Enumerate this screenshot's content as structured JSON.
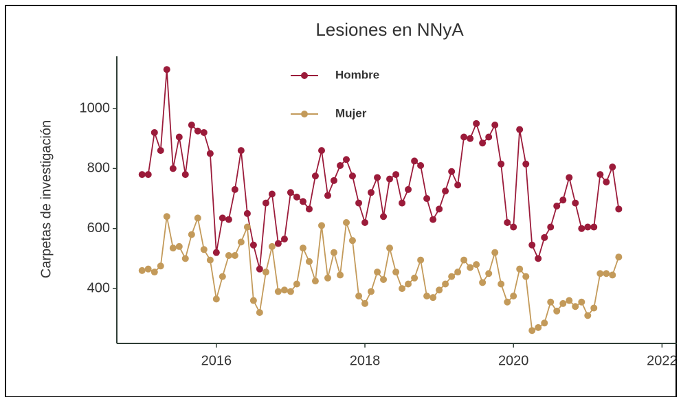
{
  "chart_data": {
    "type": "line",
    "title": "Lesiones en NNyA",
    "ylabel": "Carpetas de investigación",
    "x": [
      2015,
      2015.083,
      2015.167,
      2015.25,
      2015.333,
      2015.417,
      2015.5,
      2015.583,
      2015.667,
      2015.75,
      2015.833,
      2015.917,
      2016,
      2016.083,
      2016.167,
      2016.25,
      2016.333,
      2016.417,
      2016.5,
      2016.583,
      2016.667,
      2016.75,
      2016.833,
      2016.917,
      2017,
      2017.083,
      2017.167,
      2017.25,
      2017.333,
      2017.417,
      2017.5,
      2017.583,
      2017.667,
      2017.75,
      2017.833,
      2017.917,
      2018,
      2018.083,
      2018.167,
      2018.25,
      2018.333,
      2018.417,
      2018.5,
      2018.583,
      2018.667,
      2018.75,
      2018.833,
      2018.917,
      2019,
      2019.083,
      2019.167,
      2019.25,
      2019.333,
      2019.417,
      2019.5,
      2019.583,
      2019.667,
      2019.75,
      2019.833,
      2019.917,
      2020,
      2020.083,
      2020.167,
      2020.25,
      2020.333,
      2020.417,
      2020.5,
      2020.583,
      2020.667,
      2020.75,
      2020.833,
      2020.917,
      2021,
      2021.083,
      2021.167,
      2021.25,
      2021.333,
      2021.417
    ],
    "series": [
      {
        "name": "Hombre",
        "color": "#9b1b3a",
        "values": [
          780,
          780,
          920,
          860,
          1130,
          800,
          905,
          780,
          945,
          925,
          920,
          850,
          520,
          635,
          630,
          730,
          860,
          650,
          545,
          465,
          685,
          715,
          550,
          565,
          720,
          705,
          690,
          665,
          775,
          860,
          710,
          760,
          810,
          830,
          775,
          685,
          620,
          720,
          770,
          640,
          765,
          780,
          685,
          730,
          825,
          810,
          700,
          630,
          665,
          725,
          790,
          745,
          905,
          900,
          950,
          885,
          905,
          945,
          815,
          620,
          605,
          930,
          815,
          545,
          500,
          570,
          605,
          675,
          695,
          770,
          685,
          600,
          605,
          605,
          780,
          755,
          805,
          665
        ]
      },
      {
        "name": "Mujer",
        "color": "#c39a5a",
        "values": [
          460,
          465,
          455,
          475,
          640,
          535,
          540,
          500,
          580,
          635,
          530,
          495,
          365,
          440,
          510,
          510,
          555,
          605,
          360,
          320,
          455,
          540,
          390,
          395,
          390,
          415,
          535,
          490,
          425,
          610,
          435,
          520,
          445,
          620,
          560,
          375,
          350,
          390,
          455,
          430,
          535,
          455,
          400,
          415,
          435,
          495,
          375,
          370,
          395,
          415,
          440,
          455,
          495,
          470,
          480,
          420,
          450,
          520,
          415,
          355,
          375,
          465,
          440,
          260,
          270,
          285,
          355,
          325,
          350,
          360,
          340,
          355,
          310,
          335,
          450,
          450,
          445,
          505
        ]
      }
    ],
    "xlim": [
      2014.66,
      2022.2
    ],
    "xticks": [
      2016,
      2018,
      2020,
      2022
    ],
    "ylim": [
      217,
      1174
    ],
    "yticks": [
      400,
      600,
      800,
      1000
    ]
  }
}
